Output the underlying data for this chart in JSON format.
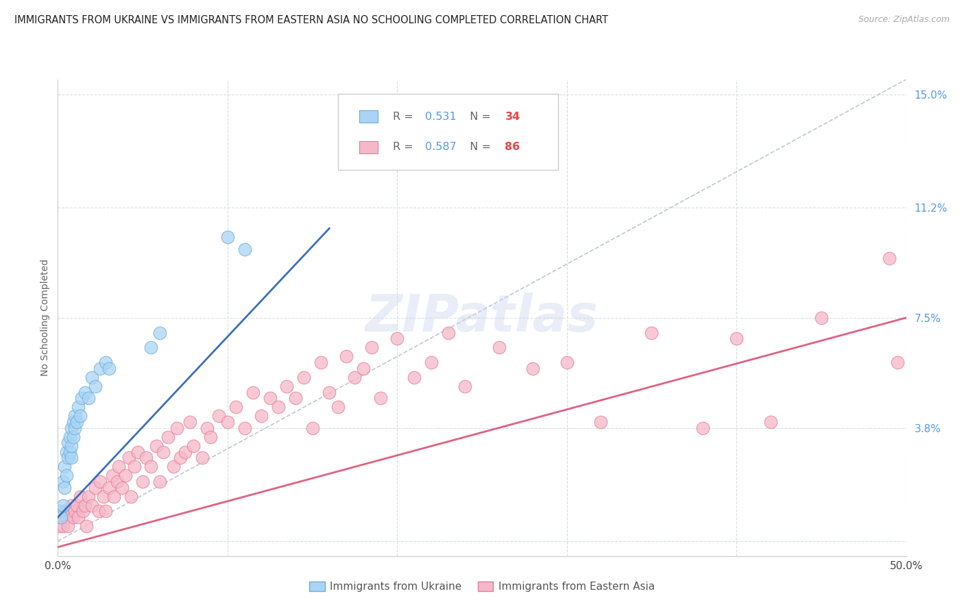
{
  "title": "IMMIGRANTS FROM UKRAINE VS IMMIGRANTS FROM EASTERN ASIA NO SCHOOLING COMPLETED CORRELATION CHART",
  "source": "Source: ZipAtlas.com",
  "ylabel": "No Schooling Completed",
  "legend_label1": "Immigrants from Ukraine",
  "legend_label2": "Immigrants from Eastern Asia",
  "r1": "0.531",
  "n1": "34",
  "r2": "0.587",
  "n2": "86",
  "xmin": 0.0,
  "xmax": 0.5,
  "ymin": -0.005,
  "ymax": 0.155,
  "ytick_vals": [
    0.0,
    0.038,
    0.075,
    0.112,
    0.15
  ],
  "ytick_labels": [
    "",
    "3.8%",
    "7.5%",
    "11.2%",
    "15.0%"
  ],
  "xtick_vals": [
    0.0,
    0.1,
    0.2,
    0.3,
    0.4,
    0.5
  ],
  "xtick_labels": [
    "0.0%",
    "",
    "",
    "",
    "",
    "50.0%"
  ],
  "color_ukraine_fill": "#aad4f5",
  "color_ukraine_edge": "#6aaed6",
  "color_eastern_fill": "#f5b8c8",
  "color_eastern_edge": "#e87a9a",
  "color_line_ukraine": "#3a6fbd",
  "color_line_eastern": "#e06080",
  "color_dashed": "#b0b8c8",
  "background_color": "#ffffff",
  "grid_color": "#d8dde8",
  "ukraine_x": [
    0.001,
    0.002,
    0.003,
    0.003,
    0.004,
    0.004,
    0.005,
    0.005,
    0.006,
    0.006,
    0.007,
    0.007,
    0.008,
    0.008,
    0.008,
    0.009,
    0.009,
    0.01,
    0.01,
    0.011,
    0.012,
    0.013,
    0.014,
    0.016,
    0.018,
    0.02,
    0.022,
    0.025,
    0.028,
    0.03,
    0.055,
    0.06,
    0.1,
    0.11
  ],
  "ukraine_y": [
    0.01,
    0.008,
    0.012,
    0.02,
    0.018,
    0.025,
    0.022,
    0.03,
    0.028,
    0.033,
    0.03,
    0.035,
    0.028,
    0.032,
    0.038,
    0.035,
    0.04,
    0.038,
    0.042,
    0.04,
    0.045,
    0.042,
    0.048,
    0.05,
    0.048,
    0.055,
    0.052,
    0.058,
    0.06,
    0.058,
    0.065,
    0.07,
    0.102,
    0.098
  ],
  "eastern_asia_x": [
    0.001,
    0.002,
    0.003,
    0.004,
    0.005,
    0.006,
    0.007,
    0.008,
    0.009,
    0.01,
    0.011,
    0.012,
    0.013,
    0.015,
    0.016,
    0.017,
    0.018,
    0.02,
    0.022,
    0.024,
    0.025,
    0.027,
    0.028,
    0.03,
    0.032,
    0.033,
    0.035,
    0.036,
    0.038,
    0.04,
    0.042,
    0.043,
    0.045,
    0.047,
    0.05,
    0.052,
    0.055,
    0.058,
    0.06,
    0.062,
    0.065,
    0.068,
    0.07,
    0.072,
    0.075,
    0.078,
    0.08,
    0.085,
    0.088,
    0.09,
    0.095,
    0.1,
    0.105,
    0.11,
    0.115,
    0.12,
    0.125,
    0.13,
    0.135,
    0.14,
    0.145,
    0.15,
    0.155,
    0.16,
    0.165,
    0.17,
    0.175,
    0.18,
    0.185,
    0.19,
    0.2,
    0.21,
    0.22,
    0.23,
    0.24,
    0.26,
    0.28,
    0.3,
    0.32,
    0.35,
    0.38,
    0.4,
    0.42,
    0.45,
    0.49,
    0.495
  ],
  "eastern_asia_y": [
    0.005,
    0.008,
    0.005,
    0.01,
    0.008,
    0.005,
    0.01,
    0.012,
    0.008,
    0.01,
    0.012,
    0.008,
    0.015,
    0.01,
    0.012,
    0.005,
    0.015,
    0.012,
    0.018,
    0.01,
    0.02,
    0.015,
    0.01,
    0.018,
    0.022,
    0.015,
    0.02,
    0.025,
    0.018,
    0.022,
    0.028,
    0.015,
    0.025,
    0.03,
    0.02,
    0.028,
    0.025,
    0.032,
    0.02,
    0.03,
    0.035,
    0.025,
    0.038,
    0.028,
    0.03,
    0.04,
    0.032,
    0.028,
    0.038,
    0.035,
    0.042,
    0.04,
    0.045,
    0.038,
    0.05,
    0.042,
    0.048,
    0.045,
    0.052,
    0.048,
    0.055,
    0.038,
    0.06,
    0.05,
    0.045,
    0.062,
    0.055,
    0.058,
    0.065,
    0.048,
    0.068,
    0.055,
    0.06,
    0.07,
    0.052,
    0.065,
    0.058,
    0.06,
    0.04,
    0.07,
    0.038,
    0.068,
    0.04,
    0.075,
    0.095,
    0.06
  ],
  "ukraine_line_x": [
    0.0,
    0.16
  ],
  "ukraine_line_y": [
    0.008,
    0.105
  ],
  "eastern_line_x": [
    0.0,
    0.5
  ],
  "eastern_line_y": [
    -0.002,
    0.075
  ]
}
